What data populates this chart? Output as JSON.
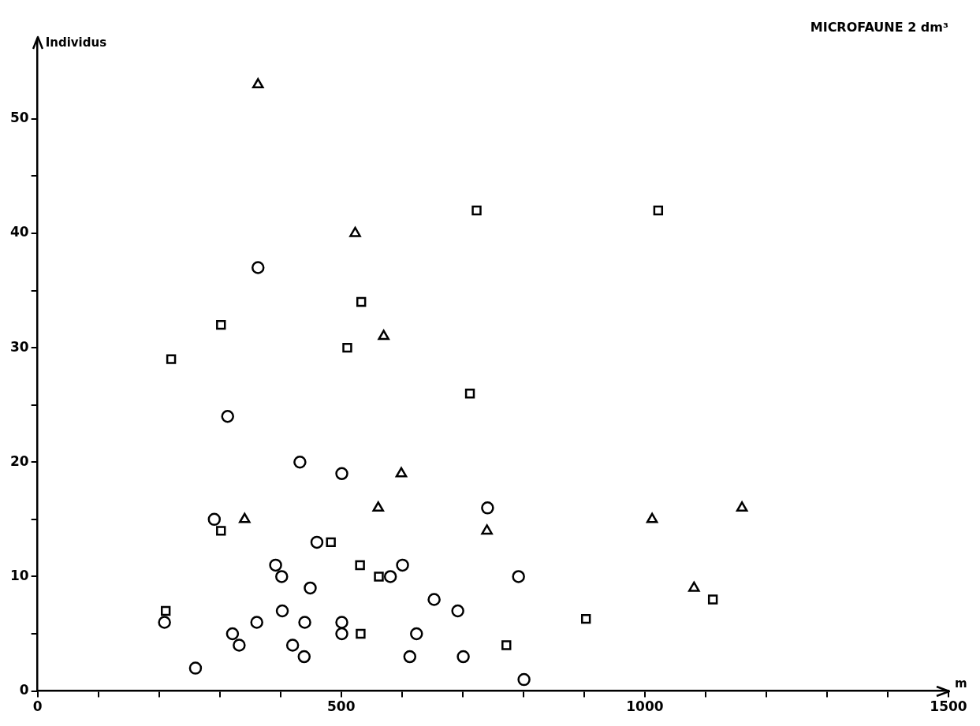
{
  "chart_data": {
    "type": "scatter",
    "title": "MICROFAUNE 2 dm³",
    "xlabel": "m",
    "ylabel": "Individus",
    "xlim": [
      0,
      1500
    ],
    "ylim": [
      0,
      57
    ],
    "xticks": [
      0,
      {
        "value": 100,
        "label": null
      },
      {
        "value": 200,
        "label": null
      },
      {
        "value": 300,
        "label": null
      },
      {
        "value": 400,
        "label": null
      },
      500,
      {
        "value": 600,
        "label": null
      },
      {
        "value": 700,
        "label": null
      },
      {
        "value": 800,
        "label": null
      },
      {
        "value": 900,
        "label": null
      },
      1000,
      {
        "value": 1100,
        "label": null
      },
      {
        "value": 1200,
        "label": null
      },
      {
        "value": 1300,
        "label": null
      },
      {
        "value": 1400,
        "label": null
      },
      1500
    ],
    "yticks": [
      0,
      {
        "value": 5,
        "label": null
      },
      10,
      {
        "value": 15,
        "label": null
      },
      20,
      {
        "value": 25,
        "label": null
      },
      30,
      {
        "value": 35,
        "label": null
      },
      40,
      {
        "value": 45,
        "label": null
      },
      50
    ],
    "grid": false,
    "legend": false,
    "series": [
      {
        "marker": "circle",
        "color": "#000000",
        "x": [
          363,
          313,
          432,
          291,
          460,
          392,
          402,
          449,
          209,
          403,
          361,
          440,
          321,
          332,
          420,
          439,
          260,
          501,
          741,
          601,
          581,
          792,
          653,
          692,
          501,
          501,
          624,
          613,
          701,
          801
        ],
        "values": [
          37,
          24,
          20,
          15,
          13,
          11,
          10,
          9,
          6,
          7,
          6,
          6,
          5,
          4,
          4,
          3,
          2,
          19,
          16,
          11,
          10,
          10,
          8,
          7,
          6,
          5,
          5,
          3,
          3,
          1
        ]
      },
      {
        "marker": "square",
        "color": "#000000",
        "x": [
          220,
          302,
          302,
          211,
          483,
          723,
          1022,
          533,
          510,
          712,
          531,
          562,
          903,
          532,
          772,
          1112
        ],
        "values": [
          29,
          32,
          14,
          7,
          13,
          42,
          42,
          34,
          30,
          26,
          11,
          10,
          6.3,
          5,
          4,
          8
        ]
      },
      {
        "marker": "triangle",
        "color": "#000000",
        "x": [
          363,
          523,
          570,
          599,
          561,
          341,
          740,
          1012,
          1160,
          1081
        ],
        "values": [
          53,
          40,
          31,
          19,
          16,
          15,
          14,
          15,
          16,
          9
        ]
      }
    ]
  }
}
